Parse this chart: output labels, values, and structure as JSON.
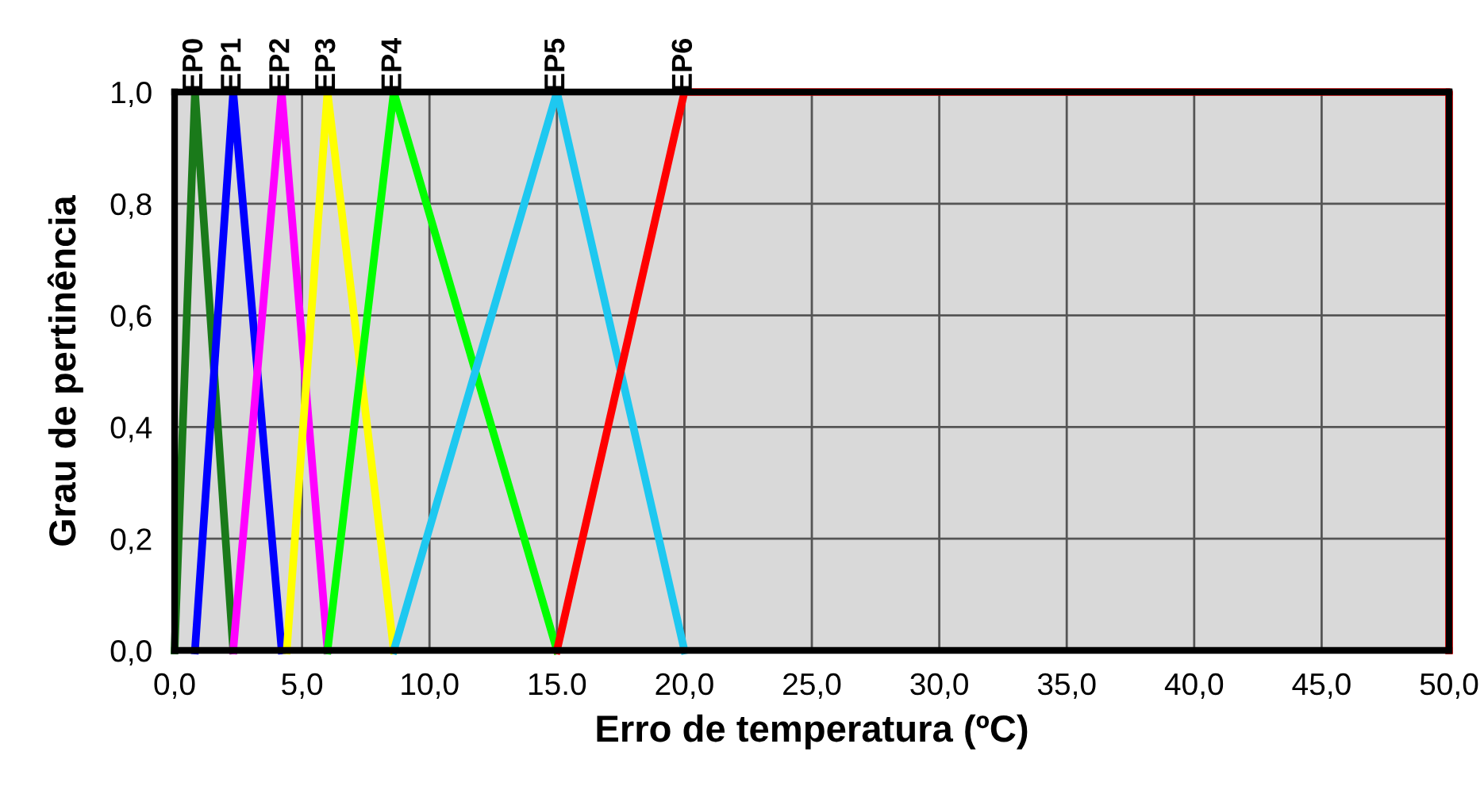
{
  "chart_data": {
    "type": "line",
    "xlabel": "Erro de temperatura (ºC)",
    "ylabel": "Grau de pertinência",
    "xlim": [
      0,
      50
    ],
    "ylim": [
      0,
      1
    ],
    "xticks": [
      {
        "value": 0,
        "label": "0,0"
      },
      {
        "value": 5,
        "label": "5,0"
      },
      {
        "value": 10,
        "label": "10,0"
      },
      {
        "value": 15,
        "label": "15.0"
      },
      {
        "value": 20,
        "label": "20,0"
      },
      {
        "value": 25,
        "label": "25,0"
      },
      {
        "value": 30,
        "label": "30,0"
      },
      {
        "value": 35,
        "label": "35,0"
      },
      {
        "value": 40,
        "label": "40,0"
      },
      {
        "value": 45,
        "label": "45,0"
      },
      {
        "value": 50,
        "label": "50,0"
      }
    ],
    "yticks": [
      {
        "value": 0,
        "label": "0,0"
      },
      {
        "value": 0.2,
        "label": "0,2"
      },
      {
        "value": 0.4,
        "label": "0,4"
      },
      {
        "value": 0.6,
        "label": "0,6"
      },
      {
        "value": 0.8,
        "label": "0,8"
      },
      {
        "value": 1,
        "label": "1,0"
      }
    ],
    "grid": true,
    "legend": false,
    "marker": "none",
    "line_style": "solid",
    "series": [
      {
        "name": "EP0",
        "color": "#1a7a1a",
        "x": [
          0,
          0.8,
          2.3
        ],
        "values": [
          0,
          1,
          0
        ]
      },
      {
        "name": "EP1",
        "color": "#0000ff",
        "x": [
          0.8,
          2.3,
          4.2
        ],
        "values": [
          0,
          1,
          0
        ]
      },
      {
        "name": "EP2",
        "color": "#ff00ff",
        "x": [
          2.3,
          4.2,
          6.0
        ],
        "values": [
          0,
          1,
          0
        ]
      },
      {
        "name": "EP3",
        "color": "#ffff00",
        "x": [
          4.4,
          6.0,
          8.6
        ],
        "values": [
          0,
          1,
          0
        ]
      },
      {
        "name": "EP4",
        "color": "#00ff00",
        "x": [
          6.0,
          8.6,
          15
        ],
        "values": [
          0,
          1,
          0
        ]
      },
      {
        "name": "EP5",
        "color": "#1ec8f0",
        "x": [
          8.6,
          15,
          20
        ],
        "values": [
          0,
          1,
          0
        ]
      },
      {
        "name": "EP6",
        "color": "#ff0000",
        "x": [
          15,
          20,
          50,
          50
        ],
        "values": [
          0,
          1,
          1,
          0
        ]
      }
    ]
  }
}
